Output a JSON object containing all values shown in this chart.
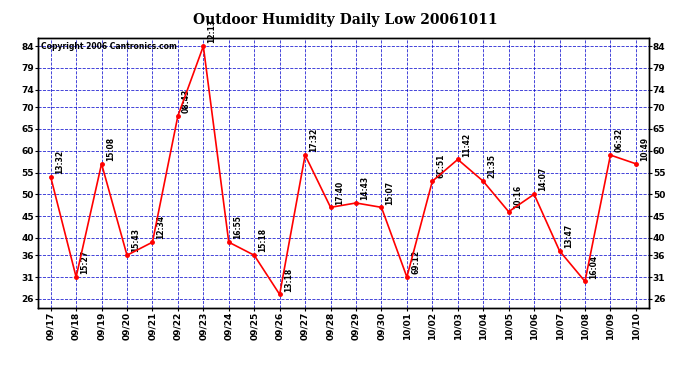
{
  "title": "Outdoor Humidity Daily Low 20061011",
  "copyright": "Copyright 2006 Cantronics.com",
  "background_color": "#ffffff",
  "plot_bg_color": "#ffffff",
  "line_color": "#ff0000",
  "marker_color": "#ff0000",
  "grid_color": "#0000cc",
  "text_color": "#000000",
  "dates": [
    "09/17",
    "09/18",
    "09/19",
    "09/20",
    "09/21",
    "09/22",
    "09/23",
    "09/24",
    "09/25",
    "09/26",
    "09/27",
    "09/28",
    "09/29",
    "09/30",
    "10/01",
    "10/02",
    "10/03",
    "10/04",
    "10/05",
    "10/06",
    "10/07",
    "10/08",
    "10/09",
    "10/10"
  ],
  "values": [
    54,
    31,
    57,
    36,
    39,
    68,
    84,
    39,
    36,
    27,
    59,
    47,
    48,
    47,
    31,
    53,
    58,
    53,
    46,
    50,
    37,
    30,
    59,
    57
  ],
  "point_labels": [
    "13:32",
    "15:27",
    "15:08",
    "15:43",
    "12:34",
    "08:43",
    "12:13",
    "16:55",
    "15:18",
    "13:18",
    "17:32",
    "17:40",
    "14:43",
    "15:07",
    "69:12",
    "6C:51",
    "11:42",
    "21:35",
    "10:16",
    "14:07",
    "13:47",
    "16:04",
    "06:32",
    "10:49"
  ],
  "yticks": [
    26,
    31,
    36,
    40,
    45,
    50,
    55,
    60,
    65,
    70,
    74,
    79,
    84
  ],
  "ylim": [
    24,
    86
  ],
  "title_fontsize": 10,
  "label_fontsize": 5.5,
  "axis_fontsize": 6.5
}
